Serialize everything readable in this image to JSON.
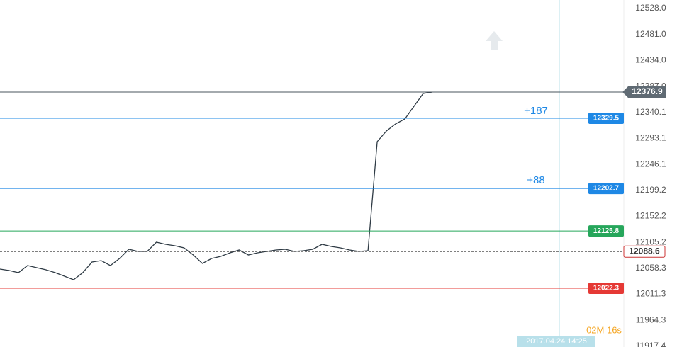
{
  "chart_data": {
    "type": "line",
    "series": [
      {
        "color": "#2f3b45",
        "values": [
          12056.8,
          12054.3,
          12050.4,
          12063.2,
          12059.4,
          12055.6,
          12050.4,
          12044,
          12037.6,
          12050.4,
          12069.6,
          12072.2,
          12063.2,
          12076,
          12092.7,
          12088.9,
          12088.9,
          12105.5,
          12101.7,
          12099.1,
          12095.3,
          12082.4,
          12067.1,
          12076,
          12079.9,
          12086.3,
          12091.4,
          12082.4,
          12086.3,
          12088.9,
          12091.4,
          12092.7,
          12088.9,
          12090.1,
          12092.7,
          12101.7,
          12097.8,
          12095.3,
          12091.4,
          12088.9,
          12090.1,
          12287.3,
          12306.5,
          12319.4,
          12328.3,
          12351.4,
          12374.4,
          12376.9
        ]
      }
    ],
    "ylim": [
      11916,
      12543.4
    ],
    "yticks": [
      {
        "value": 12528.0,
        "label": "12528.0"
      },
      {
        "value": 12481.0,
        "label": "12481.0"
      },
      {
        "value": 12434.0,
        "label": "12434.0"
      },
      {
        "value": 12387.0,
        "label": "12387.0"
      },
      12340.1,
      12293.1,
      12246.1,
      12199.2,
      12152.2,
      12105.2,
      12058.3,
      12011.3,
      11964.3,
      11917.4
    ],
    "current_price": 12376.9,
    "levels": [
      {
        "value": 12329.5,
        "color": "#1e88e5"
      },
      {
        "value": 12202.7,
        "color": "#1e88e5"
      },
      {
        "value": 12125.8,
        "color": "#26a65b"
      },
      {
        "value": 12088.6,
        "color": "#ffffff"
      },
      {
        "value": 12022.3,
        "color": "#e53935"
      }
    ],
    "annotations": [
      "+187",
      "+88"
    ],
    "time_label": "2017.04.24 14:25",
    "countdown": "02M 16s"
  }
}
